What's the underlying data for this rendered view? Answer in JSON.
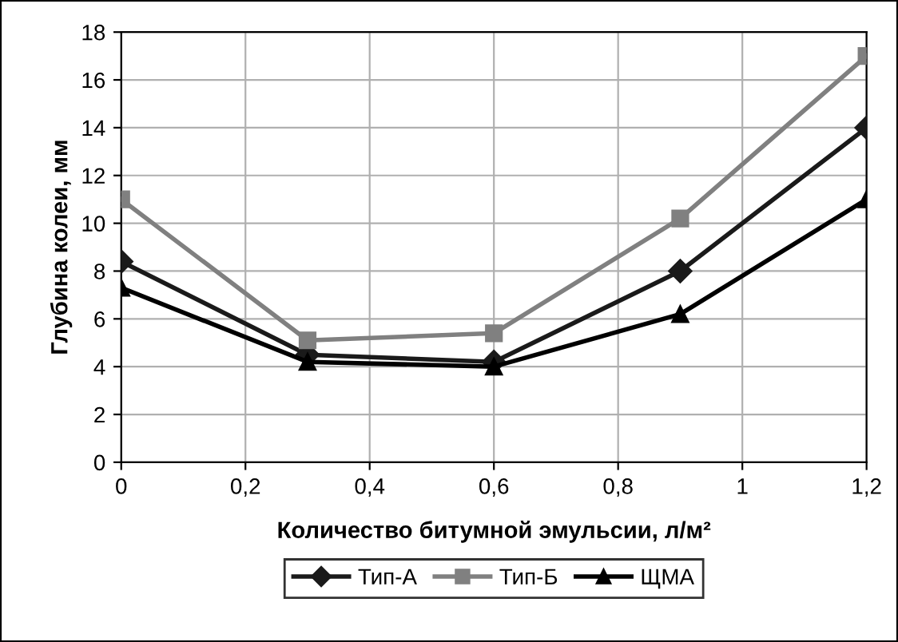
{
  "chart_data": {
    "type": "line",
    "xlabel": "Количество битумной эмульсии, л/м²",
    "ylabel": "Глубина колеи, мм",
    "x": [
      0,
      0.3,
      0.6,
      0.9,
      1.2
    ],
    "series": [
      {
        "name": "Тип-А",
        "color": "#1a1a1a",
        "marker": "diamond",
        "values": [
          8.4,
          4.5,
          4.2,
          8.0,
          14.0
        ]
      },
      {
        "name": "Тип-Б",
        "color": "#808080",
        "marker": "square",
        "values": [
          11.0,
          5.1,
          5.4,
          10.2,
          17.0
        ]
      },
      {
        "name": "ЩМА",
        "color": "#000000",
        "marker": "triangle",
        "values": [
          7.3,
          4.2,
          4.0,
          6.2,
          11.0
        ]
      }
    ],
    "xlim": [
      0,
      1.2
    ],
    "ylim": [
      0,
      18
    ],
    "xticks": [
      0,
      {
        "value": 0.2,
        "label": "0,2"
      },
      {
        "value": 0.4,
        "label": "0,4"
      },
      {
        "value": 0.6,
        "label": "0,6"
      },
      {
        "value": 0.8,
        "label": "0,8"
      },
      1,
      {
        "value": 1.2,
        "label": "1,2"
      }
    ],
    "yticks": [
      0,
      2,
      4,
      6,
      8,
      10,
      12,
      14,
      16,
      18
    ],
    "grid": true,
    "legend": "bottom",
    "line_style": "solid"
  }
}
